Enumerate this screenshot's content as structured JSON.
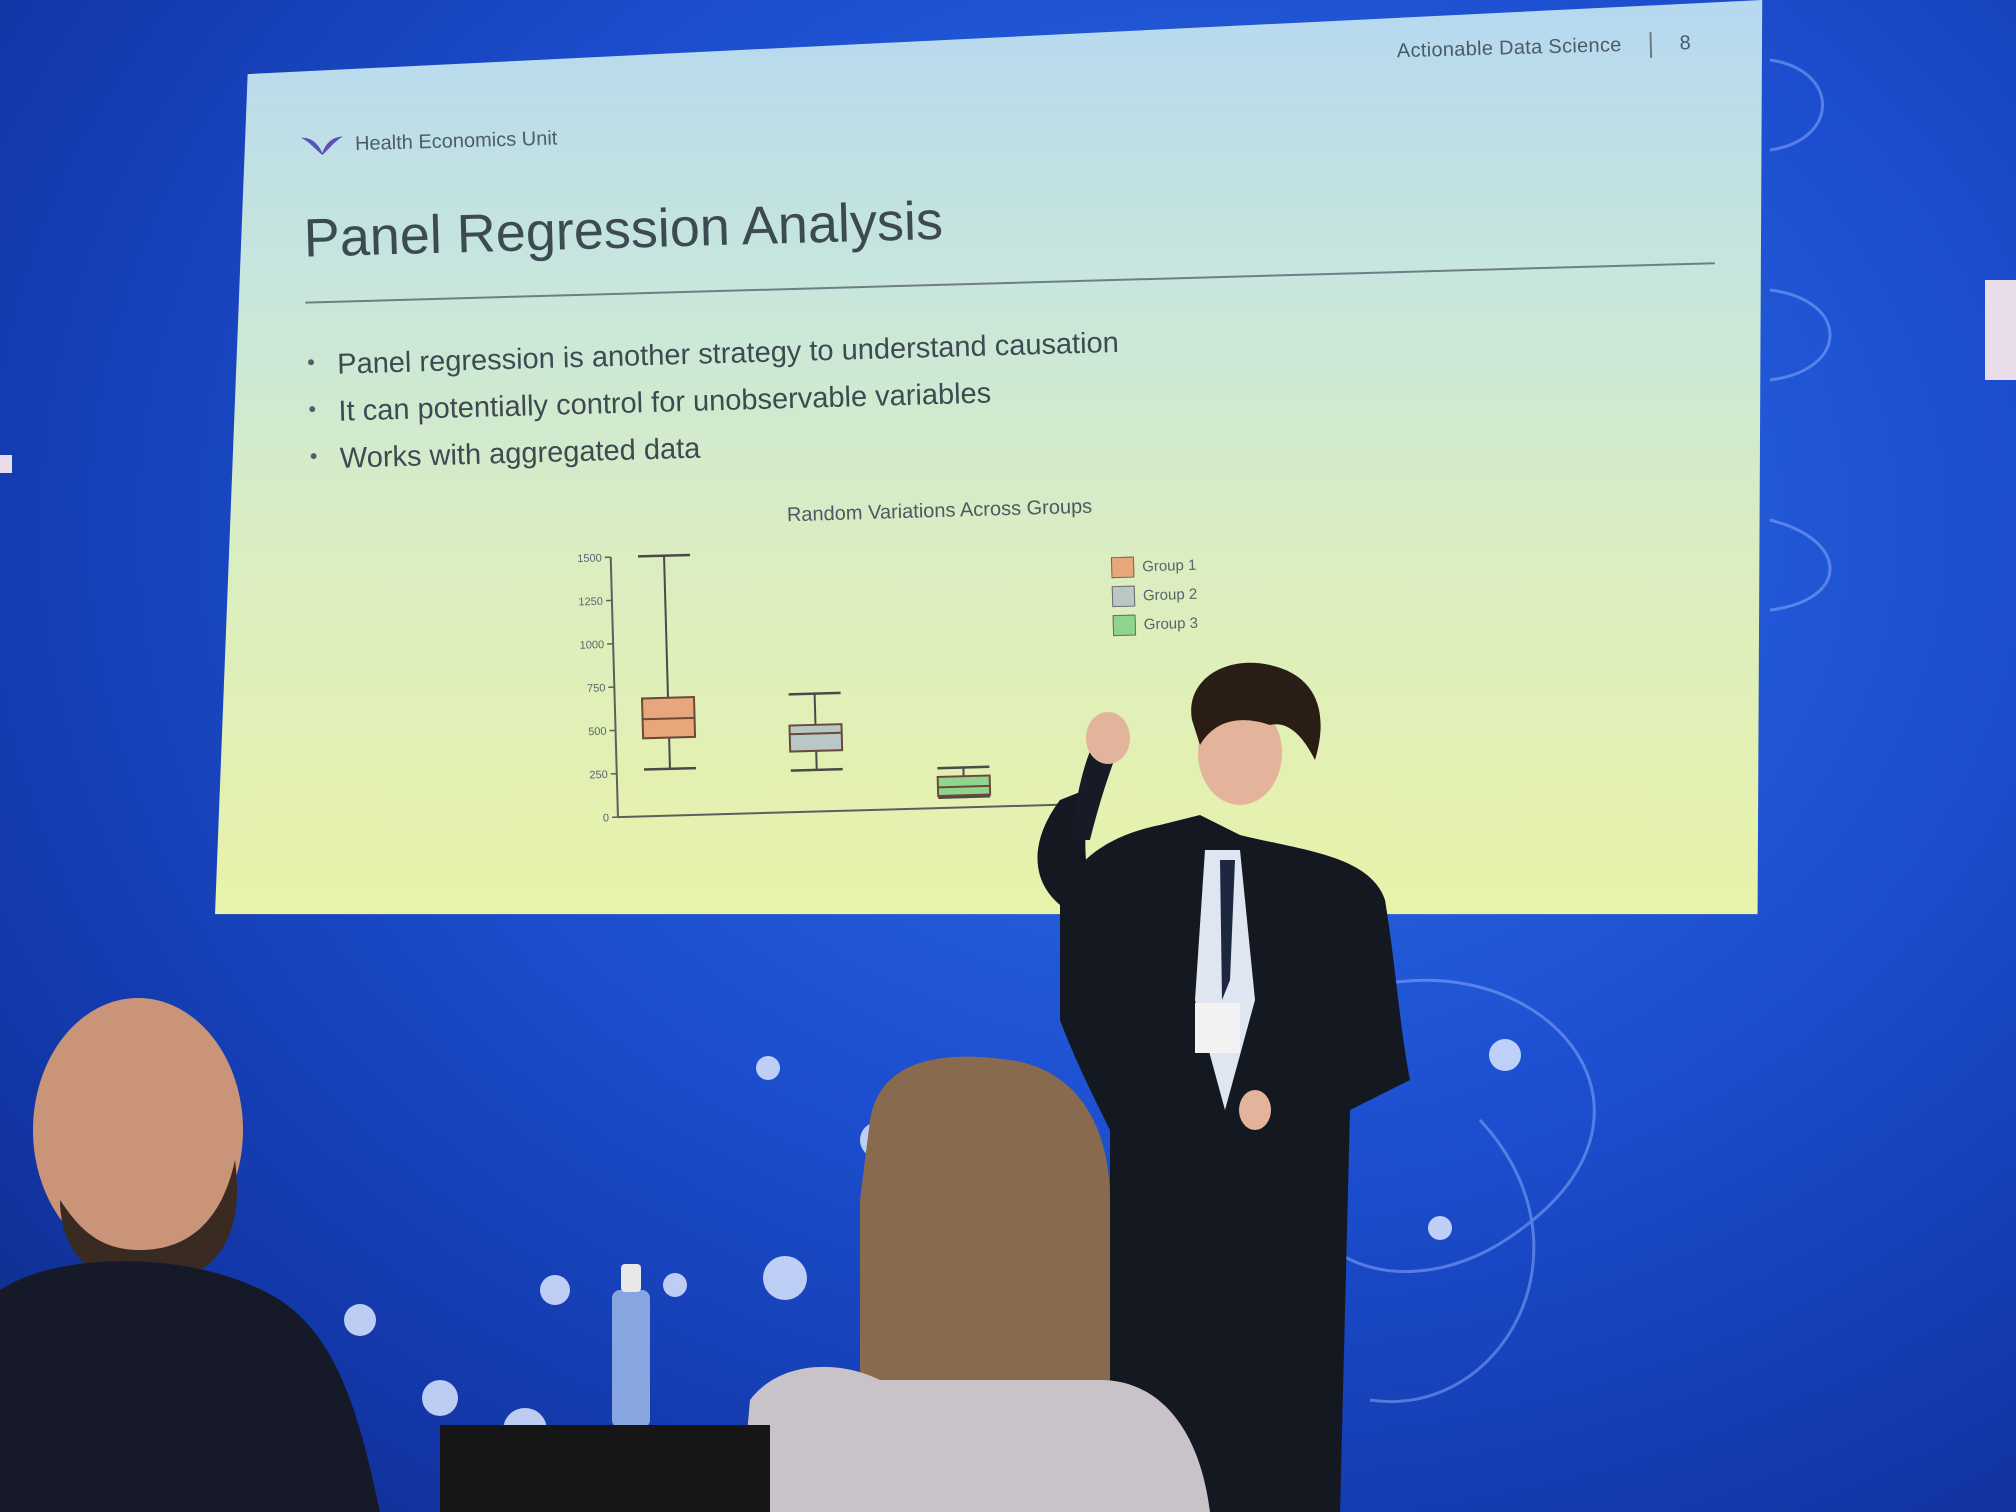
{
  "slide": {
    "header_right": "Actionable Data Science",
    "page_number": "8",
    "brand": "Health Economics Unit",
    "title": "Panel Regression Analysis",
    "bullets": [
      "Panel regression is another strategy to understand causation",
      "It can potentially control for unobservable variables",
      "Works with aggregated data"
    ]
  },
  "chart_data": {
    "type": "box",
    "title": "Random Variations Across Groups",
    "xlabel": "",
    "ylabel": "",
    "ylim": [
      0,
      1500
    ],
    "yticks": [
      "0",
      "250",
      "500",
      "750",
      "1000",
      "1250",
      "1500"
    ],
    "legend": {
      "placement": "top-right"
    },
    "series": [
      {
        "name": "Group 1",
        "color": "#e8a77a",
        "min": 270,
        "q1": 450,
        "median": 560,
        "q3": 680,
        "max": 1500
      },
      {
        "name": "Group 2",
        "color": "#b9c7c6",
        "min": 240,
        "q1": 350,
        "median": 450,
        "q3": 500,
        "max": 680
      },
      {
        "name": "Group 3",
        "color": "#90d58c",
        "min": 60,
        "q1": 70,
        "median": 120,
        "q3": 180,
        "max": 230
      }
    ]
  },
  "colors": {
    "backdrop": "#1c4fd0",
    "slide_text": "#3d4a52"
  }
}
